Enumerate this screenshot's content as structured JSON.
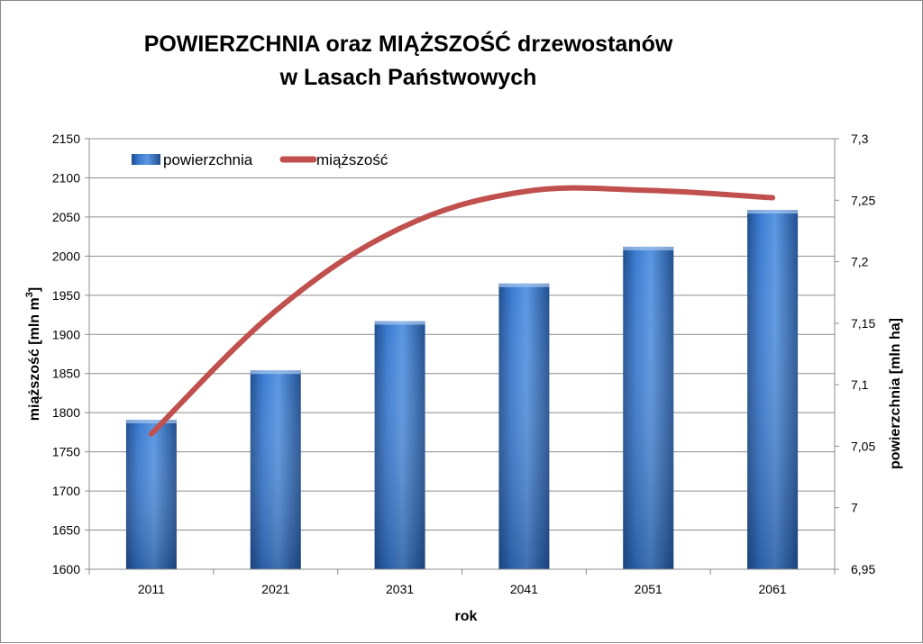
{
  "chart_data": {
    "type": "bar",
    "title_lines": [
      "POWIERZCHNIA oraz MIĄŻSZOŚĆ drzewostanów",
      "w Lasach Państwowych"
    ],
    "xlabel": "rok",
    "ylabel_left": "miąższość [mln m3]",
    "ylabel_right": "powierzchnia [mln ha]",
    "categories": [
      "2011",
      "2021",
      "2031",
      "2041",
      "2051",
      "2061"
    ],
    "y_left": {
      "lim": [
        1600,
        2150
      ],
      "ticks": [
        "1600",
        "1650",
        "1700",
        "1750",
        "1800",
        "1850",
        "1900",
        "1950",
        "2000",
        "2050",
        "2100",
        "2150"
      ]
    },
    "y_right": {
      "lim": [
        6.95,
        7.3
      ],
      "ticks": [
        "6,95",
        "7",
        "7,05",
        "7,1",
        "7,15",
        "7,2",
        "7,25",
        "7,3"
      ]
    },
    "grid": true,
    "legend_position": "top-left",
    "series": [
      {
        "name": "powierzchnia",
        "type": "bar",
        "axis": "left",
        "color": "#3f7fcf",
        "values": [
          1791,
          1854,
          1917,
          1965,
          2012,
          2059
        ]
      },
      {
        "name": "miąższość",
        "type": "line",
        "axis": "right",
        "color": "#c0504d",
        "values": [
          7.06,
          7.16,
          7.227,
          7.257,
          7.258,
          7.252
        ]
      }
    ]
  }
}
